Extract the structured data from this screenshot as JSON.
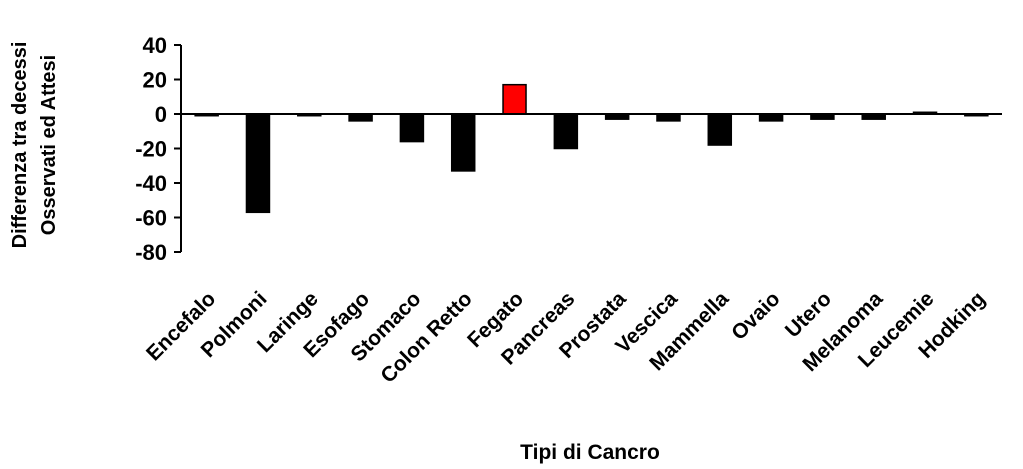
{
  "chart_data": {
    "type": "bar",
    "title": "",
    "xlabel": "Tipi di Cancro",
    "ylabel_lines": [
      "Differenza tra decessi",
      "Osservati ed Attesi"
    ],
    "ylim": [
      -80,
      40
    ],
    "yticks": [
      40,
      20,
      0,
      -20,
      -40,
      -60,
      -80
    ],
    "grid": false,
    "legend": "none",
    "categories": [
      "Encefalo",
      "Polmoni",
      "Laringe",
      "Esofago",
      "Stomaco",
      "Colon Retto",
      "Fegato",
      "Pancreas",
      "Prostata",
      "Vescica",
      "Mammella",
      "Ovaio",
      "Utero",
      "Melanoma",
      "Leucemie",
      "Hodking"
    ],
    "values": [
      -1,
      -57,
      -1,
      -4,
      -16,
      -33,
      17,
      -20,
      -3,
      -4,
      -18,
      -4,
      -3,
      -3,
      1,
      -1
    ],
    "bar_colors": [
      "#000000",
      "#000000",
      "#000000",
      "#000000",
      "#000000",
      "#000000",
      "#ff0000",
      "#000000",
      "#000000",
      "#000000",
      "#000000",
      "#000000",
      "#000000",
      "#000000",
      "#000000",
      "#000000"
    ]
  }
}
